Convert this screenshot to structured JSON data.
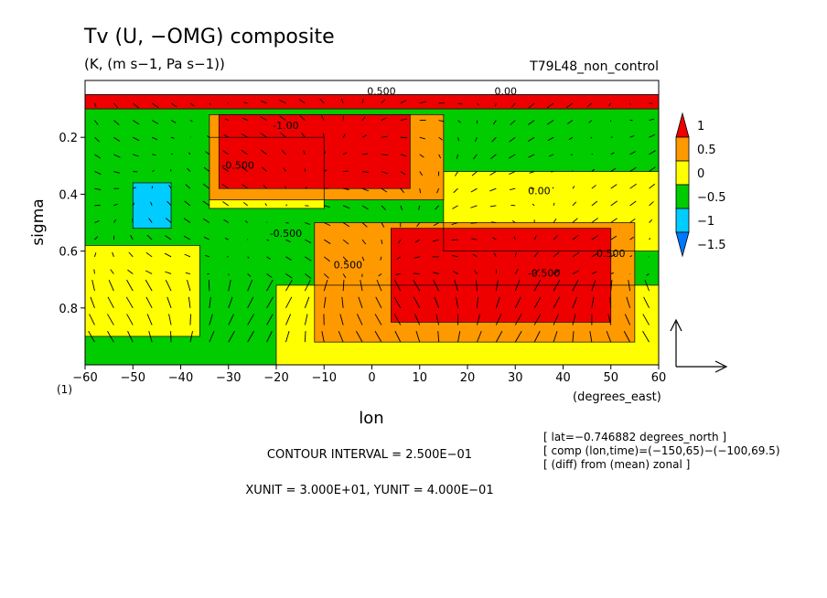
{
  "chart_data": {
    "type": "heatmap",
    "title": "Tv (U, −OMG) composite",
    "units": "(K, (m s−1, Pa s−1))",
    "run_name": "T79L48_non_control",
    "xlabel": "lon",
    "x_units": "(degrees_east)",
    "ylabel": "sigma",
    "x_range": [
      -60,
      60
    ],
    "y_range": [
      0.0,
      1.0
    ],
    "x_ticks": [
      "−60",
      "−50",
      "−40",
      "−30",
      "−20",
      "−10",
      "0",
      "10",
      "20",
      "30",
      "40",
      "50",
      "60"
    ],
    "x_tick_values": [
      -60,
      -50,
      -40,
      -30,
      -20,
      -10,
      0,
      10,
      20,
      30,
      40,
      50,
      60
    ],
    "y_ticks": [
      "0.2",
      "0.4",
      "0.6",
      "0.8"
    ],
    "y_tick_values": [
      0.2,
      0.4,
      0.6,
      0.8
    ],
    "y_bottom_label": "(1)",
    "colorbar": {
      "labels": [
        "1",
        "0.5",
        "0",
        "−0.5",
        "−1",
        "−1.5"
      ],
      "levels": [
        1.0,
        0.5,
        0.0,
        -0.5,
        -1.0,
        -1.5
      ],
      "colors": [
        "#ee0000",
        "#ff9900",
        "#ffff00",
        "#00cc00",
        "#00ccff",
        "#0077ff"
      ]
    },
    "field_regions": [
      {
        "fill": "#00cc00",
        "lon": [
          -60,
          60
        ],
        "sigma": [
          0.05,
          1.0
        ]
      },
      {
        "fill": "#ffff00",
        "lon": [
          -60,
          -36
        ],
        "sigma": [
          0.58,
          0.9
        ]
      },
      {
        "fill": "#ffff00",
        "lon": [
          -34,
          -10
        ],
        "sigma": [
          0.2,
          0.45
        ]
      },
      {
        "fill": "#ffff00",
        "lon": [
          -20,
          60
        ],
        "sigma": [
          0.72,
          1.0
        ]
      },
      {
        "fill": "#ffff00",
        "lon": [
          15,
          60
        ],
        "sigma": [
          0.32,
          0.6
        ]
      },
      {
        "fill": "#ff9900",
        "lon": [
          -34,
          15
        ],
        "sigma": [
          0.12,
          0.42
        ]
      },
      {
        "fill": "#ff9900",
        "lon": [
          -12,
          55
        ],
        "sigma": [
          0.5,
          0.92
        ]
      },
      {
        "fill": "#ee0000",
        "lon": [
          -32,
          8
        ],
        "sigma": [
          0.12,
          0.38
        ]
      },
      {
        "fill": "#ee0000",
        "lon": [
          4,
          50
        ],
        "sigma": [
          0.52,
          0.85
        ]
      },
      {
        "fill": "#00ccff",
        "lon": [
          -50,
          -42
        ],
        "sigma": [
          0.36,
          0.52
        ]
      },
      {
        "fill": "#ee0000",
        "lon": [
          -60,
          60
        ],
        "sigma": [
          0.05,
          0.1
        ]
      }
    ],
    "contour_labels": [
      "-1.00",
      "0.500",
      "0.00",
      "-0.500",
      "-0.500",
      "0.500",
      "-0.500",
      "0.00",
      "0.500"
    ],
    "reference_vector": {
      "xunit": "3.000E+01",
      "yunit": "4.000E−01"
    }
  },
  "notes": {
    "contour_interval": "CONTOUR INTERVAL = 2.500E−01",
    "units_line": "XUNIT = 3.000E+01, YUNIT = 4.000E−01",
    "meta": [
      "[ lat=−0.746882 degrees_north ]",
      "[ comp (lon,time)=(−150,65)−(−100,69.5)",
      "[ (diff) from (mean) zonal ]"
    ]
  },
  "colors": {
    "axis": "#000000",
    "background": "#ffffff",
    "vector": "#000000"
  }
}
